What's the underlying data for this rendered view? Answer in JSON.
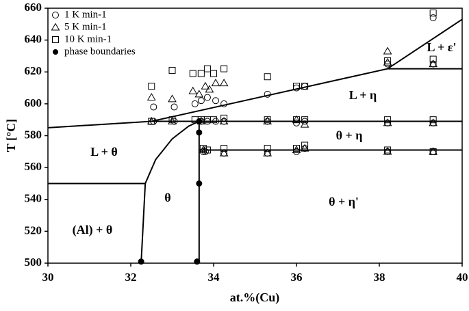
{
  "chart_data": {
    "type": "scatter",
    "x_label": "at.%(Cu)",
    "y_label": "T [°C]",
    "xlim": [
      30,
      40
    ],
    "ylim": [
      500,
      660
    ],
    "xticks": [
      30,
      32,
      34,
      36,
      38,
      40
    ],
    "yticks": [
      500,
      520,
      540,
      560,
      580,
      600,
      620,
      640,
      660
    ],
    "legend": "upper left",
    "series": [
      {
        "name": "1 K min-1",
        "marker": "circle",
        "color": "#000000",
        "x": [
          32.55,
          32.55,
          33.05,
          33.05,
          33.55,
          33.7,
          33.85,
          34.05,
          34.25,
          33.7,
          33.85,
          34.05,
          34.25,
          35.3,
          35.3,
          36.0,
          36.2,
          36.0,
          36.2,
          38.2,
          38.2,
          38.2,
          39.3,
          39.3,
          39.3,
          39.3,
          33.75,
          33.8,
          34.25,
          35.3,
          36.0,
          36.2
        ],
        "y": [
          598,
          589,
          598,
          589,
          600,
          602,
          604,
          602,
          600,
          589,
          589,
          589,
          589,
          606,
          589,
          610,
          611,
          588,
          589,
          588,
          570,
          625,
          588,
          570,
          654,
          625,
          570,
          570,
          569,
          569,
          570,
          572
        ]
      },
      {
        "name": "5 K min-1",
        "marker": "triangle",
        "color": "#000000",
        "x": [
          32.5,
          32.5,
          33.0,
          33.0,
          33.5,
          33.65,
          33.8,
          33.9,
          34.05,
          34.25,
          33.7,
          34.25,
          35.3,
          36.0,
          36.2,
          38.2,
          39.3,
          33.75,
          34.25,
          35.3,
          36.0,
          36.2,
          38.2,
          39.3,
          38.2,
          38.2,
          39.3
        ],
        "y": [
          604,
          589,
          603,
          589,
          608,
          606,
          611,
          609,
          613,
          613,
          589,
          589,
          589,
          590,
          587,
          588,
          588,
          571,
          569,
          569,
          571,
          572,
          570,
          570,
          633,
          626,
          625
        ]
      },
      {
        "name": "10 K min-1",
        "marker": "square",
        "color": "#000000",
        "x": [
          32.5,
          32.5,
          33.0,
          33.0,
          33.5,
          33.7,
          33.85,
          34.0,
          34.25,
          33.55,
          33.7,
          33.85,
          34.0,
          34.25,
          35.3,
          35.3,
          36.0,
          36.0,
          36.2,
          36.2,
          38.2,
          38.2,
          39.3,
          39.3,
          39.3,
          33.75,
          33.85,
          34.25,
          35.3,
          36.0,
          36.2,
          38.2,
          39.3
        ],
        "y": [
          611,
          589,
          621,
          590,
          619,
          619,
          622,
          619,
          622,
          590,
          590,
          590,
          590,
          591,
          617,
          590,
          611,
          590,
          611,
          590,
          627,
          590,
          657,
          628,
          590,
          572,
          571,
          572,
          572,
          572,
          574,
          571,
          570
        ]
      },
      {
        "name": "phase boundaries",
        "marker": "dot",
        "color": "#000000",
        "x": [
          32.25,
          33.6,
          33.65,
          33.65,
          33.65
        ],
        "y": [
          501,
          501,
          550,
          582,
          589
        ]
      }
    ],
    "boundaries": [
      {
        "x": [
          30,
          32.5,
          38.2,
          40
        ],
        "y": [
          585,
          589,
          622,
          653
        ]
      },
      {
        "x": [
          32.5,
          40
        ],
        "y": [
          589,
          589
        ]
      },
      {
        "x": [
          38.2,
          40
        ],
        "y": [
          622,
          622
        ]
      },
      {
        "x": [
          33.65,
          40
        ],
        "y": [
          571,
          571
        ]
      },
      {
        "x": [
          30,
          32.35,
          32.6,
          33.0,
          33.4,
          33.65
        ],
        "y": [
          550,
          550,
          565,
          578,
          586,
          589
        ]
      },
      {
        "x": [
          32.35,
          32.25
        ],
        "y": [
          550,
          500
        ]
      },
      {
        "x": [
          33.65,
          33.65
        ],
        "y": [
          589,
          500
        ]
      }
    ],
    "annotations": [
      "L + η",
      "θ + η",
      "L + θ",
      "θ",
      "θ + η'",
      "(Al) + θ",
      "L + ε'"
    ]
  }
}
